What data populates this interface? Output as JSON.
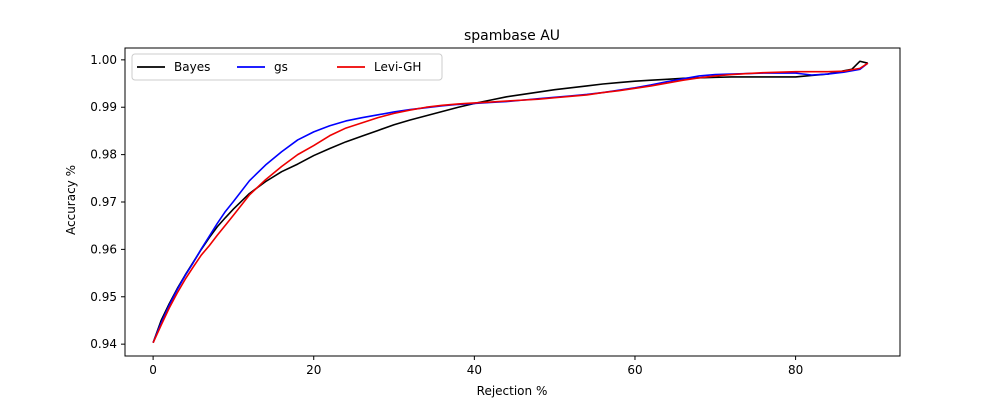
{
  "chart_data": {
    "type": "line",
    "title": "spambase AU",
    "xlabel": "Rejection %",
    "ylabel": "Accuracy %",
    "xlim": [
      -3.5,
      93
    ],
    "ylim": [
      0.9375,
      1.0025
    ],
    "xticks": [
      0,
      20,
      40,
      60,
      80
    ],
    "yticks": [
      0.94,
      0.95,
      0.96,
      0.97,
      0.98,
      0.99,
      1.0
    ],
    "xtick_labels": [
      "0",
      "20",
      "40",
      "60",
      "80"
    ],
    "ytick_labels": [
      "0.94",
      "0.95",
      "0.96",
      "0.97",
      "0.98",
      "0.99",
      "1.00"
    ],
    "grid": false,
    "legend_position": "top-left",
    "series": [
      {
        "name": "Bayes",
        "color": "#000000",
        "x": [
          0,
          1,
          2,
          3,
          4,
          5,
          6,
          7,
          8,
          9,
          10,
          12,
          14,
          16,
          18,
          20,
          22,
          24,
          26,
          28,
          30,
          32,
          34,
          36,
          38,
          40,
          42,
          44,
          46,
          48,
          50,
          52,
          54,
          56,
          58,
          60,
          62,
          64,
          66,
          68,
          70,
          72,
          74,
          76,
          78,
          80,
          82,
          84,
          86,
          87,
          88,
          89
        ],
        "y": [
          0.9403,
          0.945,
          0.9485,
          0.9517,
          0.9546,
          0.9573,
          0.96,
          0.9625,
          0.9648,
          0.9667,
          0.9685,
          0.9718,
          0.9743,
          0.9764,
          0.978,
          0.9798,
          0.9813,
          0.9827,
          0.9839,
          0.9851,
          0.9863,
          0.9873,
          0.9882,
          0.9891,
          0.99,
          0.9908,
          0.9915,
          0.9922,
          0.9927,
          0.9932,
          0.9937,
          0.9941,
          0.9945,
          0.9949,
          0.9952,
          0.9955,
          0.9957,
          0.9959,
          0.9961,
          0.9962,
          0.9963,
          0.9964,
          0.9964,
          0.9964,
          0.9964,
          0.9964,
          0.9967,
          0.997,
          0.9977,
          0.998,
          0.9997,
          0.9993
        ]
      },
      {
        "name": "gs",
        "color": "#0000ff",
        "x": [
          0,
          1,
          2,
          3,
          4,
          5,
          6,
          7,
          8,
          9,
          10,
          12,
          14,
          16,
          18,
          20,
          22,
          24,
          26,
          28,
          30,
          32,
          34,
          36,
          38,
          40,
          42,
          44,
          46,
          48,
          50,
          52,
          54,
          56,
          58,
          60,
          62,
          64,
          66,
          68,
          70,
          72,
          74,
          76,
          78,
          80,
          82,
          84,
          86,
          88,
          89
        ],
        "y": [
          0.9403,
          0.9445,
          0.9482,
          0.9515,
          0.9545,
          0.9572,
          0.9601,
          0.9628,
          0.9655,
          0.968,
          0.9701,
          0.9745,
          0.9778,
          0.9806,
          0.9831,
          0.9848,
          0.9861,
          0.9871,
          0.9878,
          0.9884,
          0.989,
          0.9895,
          0.9899,
          0.9903,
          0.9906,
          0.9908,
          0.991,
          0.9912,
          0.9915,
          0.9918,
          0.9921,
          0.9924,
          0.9927,
          0.9931,
          0.9936,
          0.9941,
          0.9947,
          0.9954,
          0.996,
          0.9966,
          0.9969,
          0.997,
          0.9971,
          0.9972,
          0.9972,
          0.9972,
          0.9968,
          0.997,
          0.9974,
          0.998,
          0.9993
        ]
      },
      {
        "name": "Levi-GH",
        "color": "#ee0000",
        "x": [
          0,
          1,
          2,
          3,
          4,
          5,
          6,
          7,
          8,
          9,
          10,
          12,
          14,
          16,
          18,
          20,
          22,
          24,
          26,
          28,
          30,
          32,
          34,
          36,
          38,
          40,
          42,
          44,
          46,
          48,
          50,
          52,
          54,
          56,
          58,
          60,
          62,
          64,
          66,
          68,
          70,
          72,
          74,
          76,
          78,
          80,
          82,
          84,
          86,
          88,
          89
        ],
        "y": [
          0.9403,
          0.944,
          0.9476,
          0.9508,
          0.9537,
          0.9563,
          0.9588,
          0.9608,
          0.963,
          0.9651,
          0.9672,
          0.9715,
          0.9747,
          0.9775,
          0.98,
          0.9819,
          0.984,
          0.9856,
          0.9867,
          0.9878,
          0.9887,
          0.9894,
          0.99,
          0.9904,
          0.9907,
          0.9909,
          0.9911,
          0.9913,
          0.9915,
          0.9917,
          0.992,
          0.9923,
          0.9926,
          0.9931,
          0.9935,
          0.994,
          0.9945,
          0.9951,
          0.9957,
          0.9962,
          0.9966,
          0.9969,
          0.9971,
          0.9973,
          0.9974,
          0.9975,
          0.9975,
          0.9975,
          0.9976,
          0.9982,
          0.9993
        ]
      }
    ]
  }
}
